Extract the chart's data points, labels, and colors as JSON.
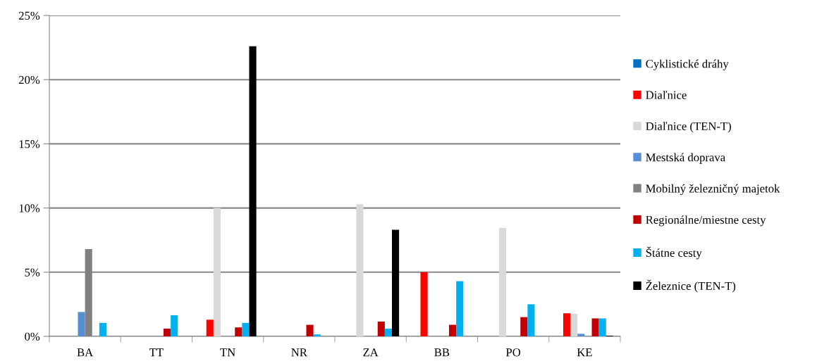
{
  "chart_data": {
    "type": "bar",
    "categories": [
      "BA",
      "TT",
      "TN",
      "NR",
      "ZA",
      "BB",
      "PO",
      "KE"
    ],
    "series": [
      {
        "name": "Cyklistické dráhy",
        "color": "#0070c0",
        "values": [
          0,
          0,
          0,
          0,
          0,
          0,
          0,
          0
        ]
      },
      {
        "name": "Diaľnice",
        "color": "#ff0000",
        "values": [
          0,
          0,
          1.3,
          0,
          0,
          5.0,
          0,
          1.8
        ]
      },
      {
        "name": "Diaľnice (TEN-T)",
        "color": "#d9d9d9",
        "values": [
          0,
          0,
          10.0,
          0,
          10.3,
          0,
          8.45,
          1.75
        ]
      },
      {
        "name": "Mestská doprava",
        "color": "#558ed5",
        "values": [
          1.9,
          0,
          0,
          0,
          0,
          0,
          0,
          0.2
        ]
      },
      {
        "name": "Mobilný železničný majetok",
        "color": "#808080",
        "values": [
          6.8,
          0,
          0,
          0,
          0,
          0,
          0,
          0
        ]
      },
      {
        "name": "Regionálne/miestne cesty",
        "color": "#c00000",
        "values": [
          0,
          0.6,
          0.7,
          0.9,
          1.15,
          0.9,
          1.5,
          1.4
        ]
      },
      {
        "name": "Štátne cesty",
        "color": "#00b0f0",
        "values": [
          1.05,
          1.65,
          1.05,
          0.15,
          0.6,
          4.3,
          2.5,
          1.4
        ]
      },
      {
        "name": "Železnice (TEN-T)",
        "color": "#000000",
        "values": [
          0,
          0,
          22.6,
          0,
          8.3,
          0,
          0,
          0.05
        ]
      }
    ],
    "ylim": [
      0,
      25
    ],
    "yticks": [
      {
        "value": 0,
        "label": "0%"
      },
      {
        "value": 5,
        "label": "5%"
      },
      {
        "value": 10,
        "label": "10%"
      },
      {
        "value": 15,
        "label": "15%"
      },
      {
        "value": 20,
        "label": "20%"
      },
      {
        "value": 25,
        "label": "25%"
      }
    ],
    "grid": "y",
    "legend": "right"
  }
}
